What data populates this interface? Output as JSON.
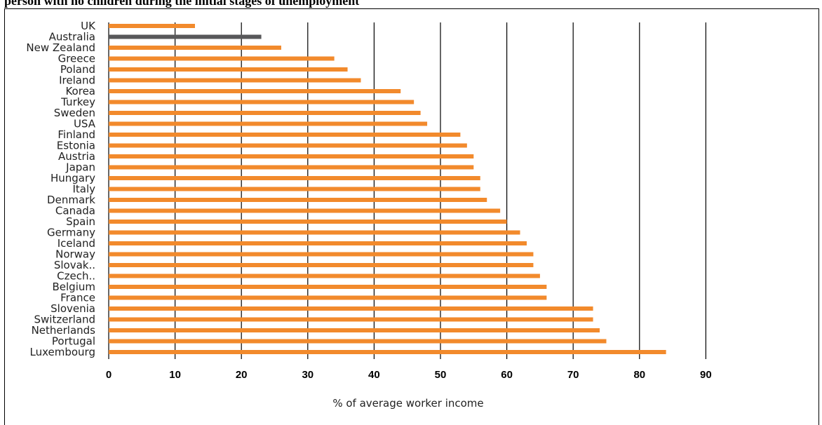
{
  "title": "person with no children during the initial stages of unemployment",
  "chart_data": {
    "type": "bar",
    "orientation": "horizontal",
    "categories": [
      "UK",
      "Australia",
      "New Zealand",
      "Greece",
      "Poland",
      "Ireland",
      "Korea",
      "Turkey",
      "Sweden",
      "USA",
      "Finland",
      "Estonia",
      "Austria",
      "Japan",
      "Hungary",
      "Italy",
      "Denmark",
      "Canada",
      "Spain",
      "Germany",
      "Iceland",
      "Norway",
      "Slovak..",
      "Czech..",
      "Belgium",
      "France",
      "Slovenia",
      "Switzerland",
      "Netherlands",
      "Portugal",
      "Luxembourg"
    ],
    "values": [
      13,
      23,
      26,
      34,
      36,
      38,
      44,
      46,
      47,
      48,
      53,
      54,
      55,
      55,
      56,
      56,
      57,
      59,
      60,
      62,
      63,
      64,
      64,
      65,
      66,
      66,
      73,
      73,
      74,
      75,
      84
    ],
    "highlight": "Australia",
    "colors": {
      "bar": "#f28a2c",
      "highlight": "#58585a",
      "grid": "#000000"
    },
    "xlabel": "% of average worker income",
    "xlim": [
      0,
      90
    ],
    "xticks": [
      "0",
      "10",
      "20",
      "30",
      "40",
      "50",
      "60",
      "70",
      "80",
      "90"
    ],
    "grid": "vertical"
  }
}
